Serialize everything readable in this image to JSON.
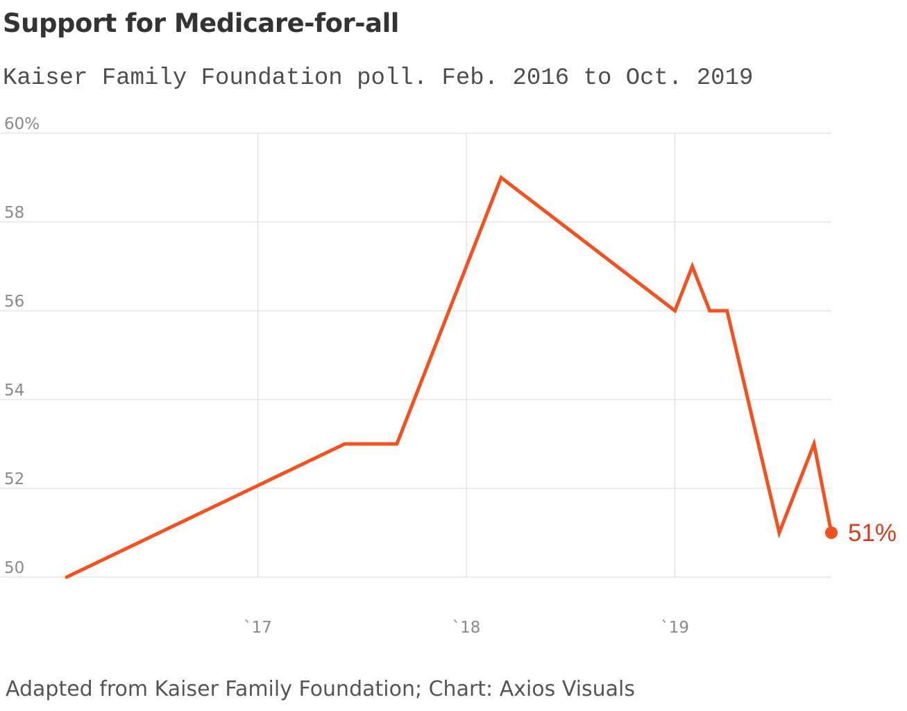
{
  "title": "Support for Medicare-for-all",
  "subtitle": "Kaiser Family Foundation poll. Feb. 2016 to Oct. 2019",
  "source": "Adapted from Kaiser Family Foundation; Chart: Axios Visuals",
  "colors": {
    "line": "#f4511e",
    "end_label": "#d63c1b",
    "grid": "#d9d9d9",
    "tick_text": "#8a8a8a"
  },
  "chart_data": {
    "type": "line",
    "title": "Support for Medicare-for-all",
    "subtitle": "Kaiser Family Foundation poll. Feb. 2016 to Oct. 2019",
    "ylim": [
      50,
      60
    ],
    "xlim": [
      "2016-02",
      "2019-10"
    ],
    "grid": true,
    "y_ticks": [
      {
        "value": 60,
        "label": "60%"
      },
      {
        "value": 58,
        "label": "58"
      },
      {
        "value": 56,
        "label": "56"
      },
      {
        "value": 54,
        "label": "54"
      },
      {
        "value": 52,
        "label": "52"
      },
      {
        "value": 50,
        "label": "50"
      }
    ],
    "x_ticks": [
      {
        "value": "2017-01",
        "label": "`17"
      },
      {
        "value": "2018-01",
        "label": "`18"
      },
      {
        "value": "2019-01",
        "label": "`19"
      }
    ],
    "series": [
      {
        "points": [
          {
            "x": "2016-02",
            "y": 50
          },
          {
            "x": "2017-06",
            "y": 53
          },
          {
            "x": "2017-09",
            "y": 53
          },
          {
            "x": "2018-03",
            "y": 59
          },
          {
            "x": "2019-01",
            "y": 56
          },
          {
            "x": "2019-02",
            "y": 57
          },
          {
            "x": "2019-03",
            "y": 56
          },
          {
            "x": "2019-04",
            "y": 56
          },
          {
            "x": "2019-07",
            "y": 51
          },
          {
            "x": "2019-09",
            "y": 53
          },
          {
            "x": "2019-10",
            "y": 51
          }
        ]
      }
    ],
    "end_label": "51%"
  }
}
